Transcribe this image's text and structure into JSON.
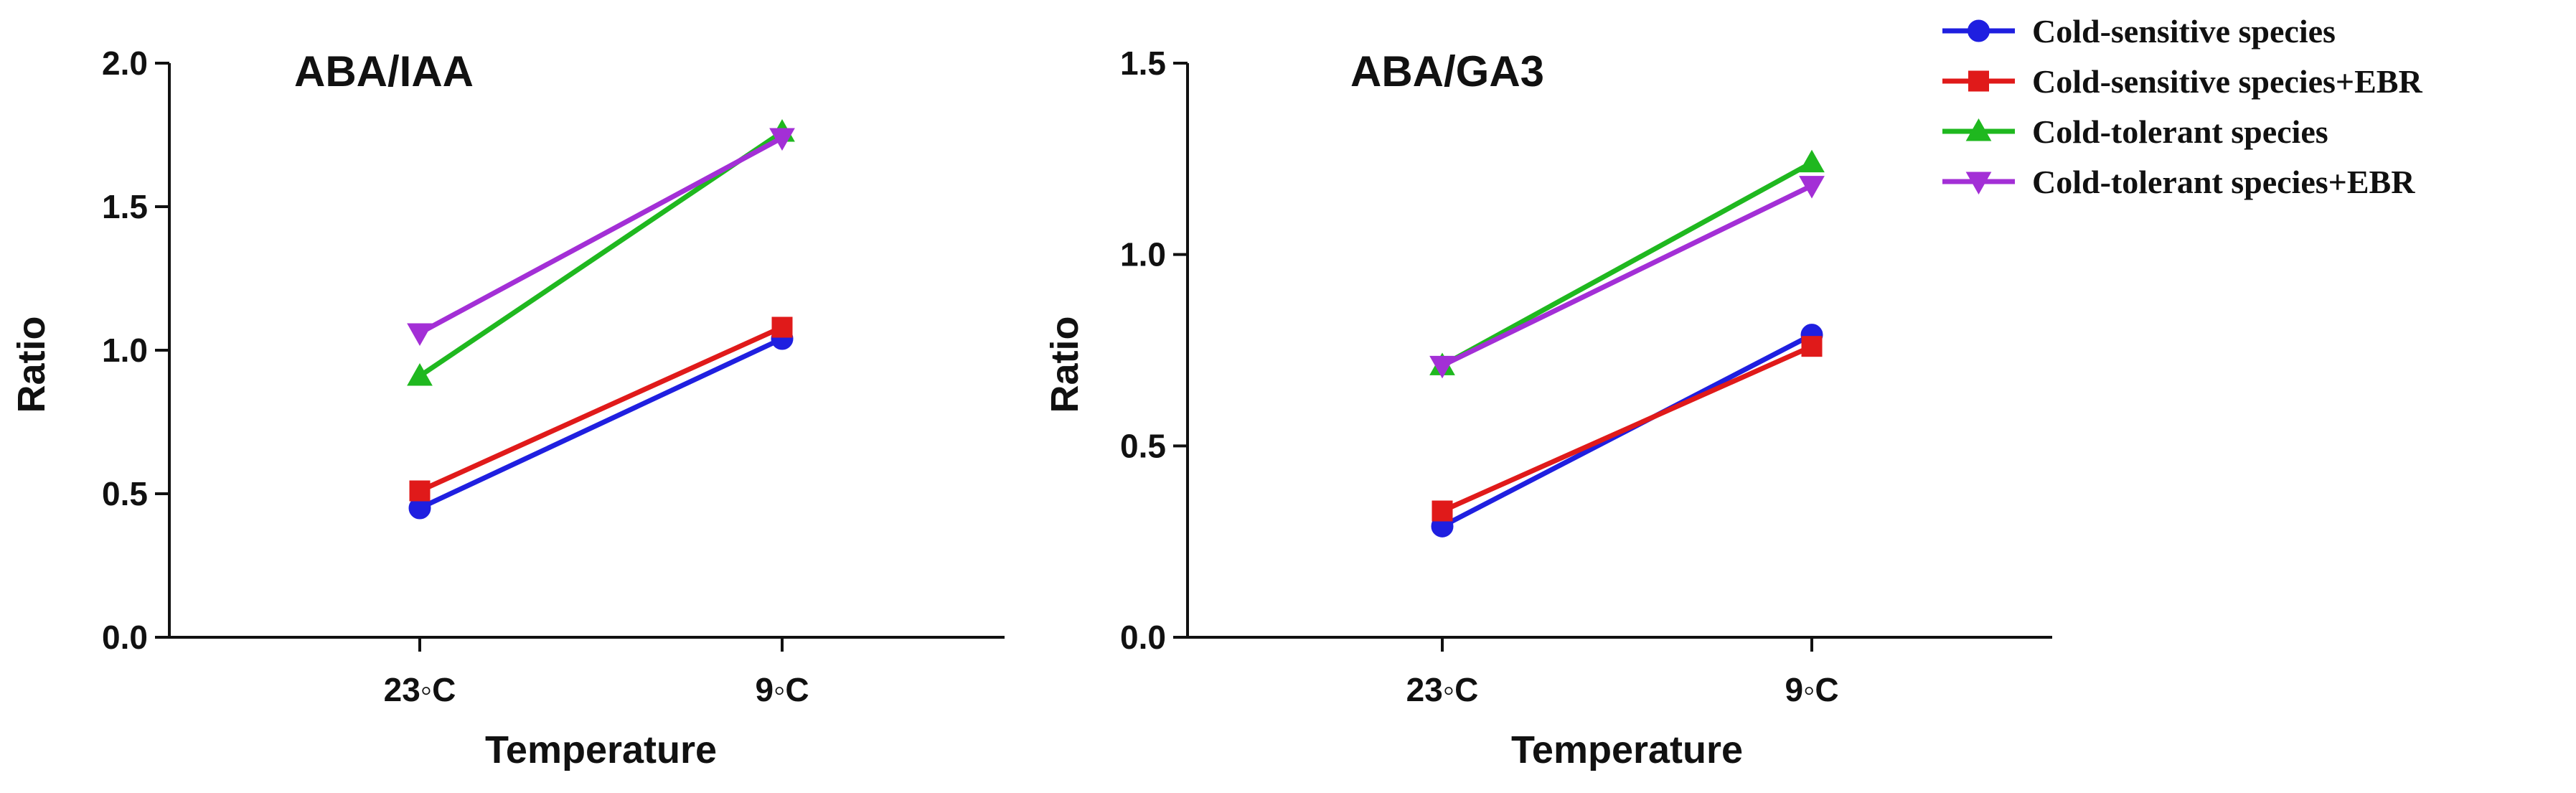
{
  "legend": {
    "items": [
      {
        "label": "Cold-sensitive species",
        "color": "#1f1fe0",
        "marker": "circle"
      },
      {
        "label": "Cold-sensitive species+EBR",
        "color": "#e01a1a",
        "marker": "square"
      },
      {
        "label": "Cold-tolerant species",
        "color": "#1fb81f",
        "marker": "triangle-up"
      },
      {
        "label": "Cold-tolerant species+EBR",
        "color": "#a32fd6",
        "marker": "triangle-down"
      }
    ]
  },
  "chart_data": [
    {
      "type": "line",
      "title": "ABA/IAA",
      "xlabel": "Temperature",
      "ylabel": "Ratio",
      "categories": [
        "23◦C",
        "9◦C"
      ],
      "ylim": [
        0,
        2.0
      ],
      "yticks": [
        0.0,
        0.5,
        1.0,
        1.5,
        2.0
      ],
      "ytick_labels": [
        "0.0",
        "0.5",
        "1.0",
        "1.5",
        "2.0"
      ],
      "series": [
        {
          "name": "Cold-sensitive species",
          "values": [
            0.45,
            1.04
          ]
        },
        {
          "name": "Cold-sensitive species+EBR",
          "values": [
            0.51,
            1.08
          ]
        },
        {
          "name": "Cold-tolerant species",
          "values": [
            0.91,
            1.76
          ]
        },
        {
          "name": "Cold-tolerant species+EBR",
          "values": [
            1.06,
            1.74
          ]
        }
      ]
    },
    {
      "type": "line",
      "title": "ABA/GA3",
      "xlabel": "Temperature",
      "ylabel": "Ratio",
      "categories": [
        "23◦C",
        "9◦C"
      ],
      "ylim": [
        0,
        1.5
      ],
      "yticks": [
        0.0,
        0.5,
        1.0,
        1.5
      ],
      "ytick_labels": [
        "0.0",
        "0.5",
        "1.0",
        "1.5"
      ],
      "series": [
        {
          "name": "Cold-sensitive species",
          "values": [
            0.29,
            0.79
          ]
        },
        {
          "name": "Cold-sensitive species+EBR",
          "values": [
            0.33,
            0.76
          ]
        },
        {
          "name": "Cold-tolerant species",
          "values": [
            0.71,
            1.24
          ]
        },
        {
          "name": "Cold-tolerant species+EBR",
          "values": [
            0.71,
            1.18
          ]
        }
      ]
    }
  ]
}
